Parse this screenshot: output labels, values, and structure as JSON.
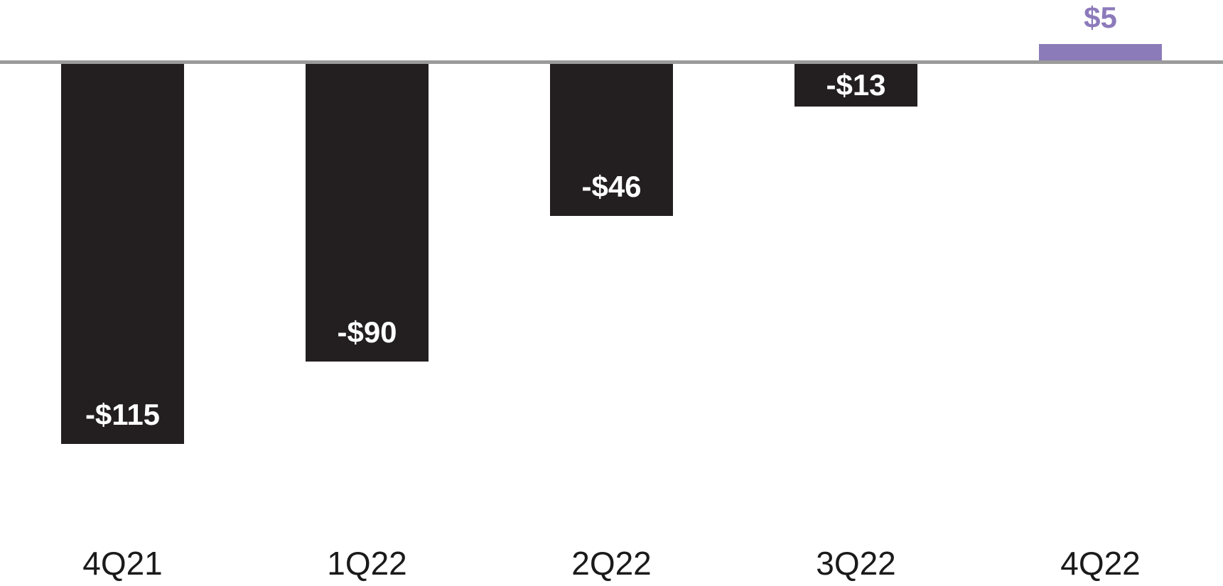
{
  "chart_data": {
    "type": "bar",
    "title": "",
    "categories": [
      "4Q21",
      "1Q22",
      "2Q22",
      "3Q22",
      "4Q22"
    ],
    "values": [
      -115,
      -90,
      -46,
      -13,
      5
    ],
    "value_labels": [
      "-$115",
      "-$90",
      "-$46",
      "-$13",
      "$5"
    ],
    "xlabel": "",
    "ylabel": "",
    "ylim": [
      -125,
      15
    ],
    "baseline": 0,
    "grid": false,
    "legend": false,
    "axes_shown": {
      "x_tick_labels": true,
      "y_axis": false
    },
    "colors": {
      "negative_bar": "#231F20",
      "positive_bar": "#8C7BB9",
      "positive_label_text": "#8C7ABB",
      "value_label_on_bar": "#FFFFFF",
      "axis_label": "#1A1A1A",
      "baseline_line": "#9B9B9B",
      "background": "#FFFFFF"
    }
  }
}
